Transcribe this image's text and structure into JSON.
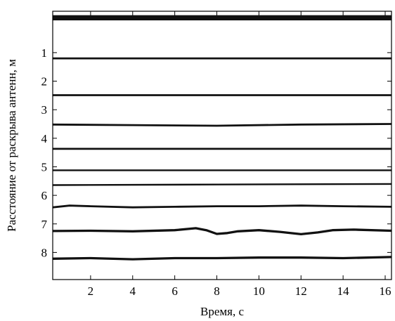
{
  "chart_data": {
    "type": "line",
    "xlabel": "Время, с",
    "ylabel": "Расстояние от раскрыва антенн, м",
    "xlim": [
      0.2,
      16.3
    ],
    "ylim": [
      0,
      8.95
    ],
    "y_inverted": true,
    "x_ticks": [
      2,
      4,
      6,
      8,
      10,
      12,
      14,
      16
    ],
    "y_ticks": [
      1,
      2,
      3,
      4,
      5,
      6,
      7,
      8
    ],
    "grid": false,
    "line_color": "#111111",
    "series": [
      {
        "x": [
          0.2,
          16.3
        ],
        "y": [
          -0.22,
          -0.22
        ],
        "width": 0.18
      },
      {
        "x": [
          0.2,
          16.3
        ],
        "y": [
          1.2,
          1.2
        ],
        "width": 0.07
      },
      {
        "x": [
          0.2,
          16.3
        ],
        "y": [
          2.49,
          2.49
        ],
        "width": 0.07
      },
      {
        "x": [
          0.2,
          4,
          8,
          12,
          16.3
        ],
        "y": [
          3.52,
          3.54,
          3.56,
          3.52,
          3.5
        ],
        "width": 0.07
      },
      {
        "x": [
          0.2,
          16.3
        ],
        "y": [
          4.37,
          4.37
        ],
        "width": 0.07
      },
      {
        "x": [
          0.2,
          16.3
        ],
        "y": [
          5.12,
          5.12
        ],
        "width": 0.06
      },
      {
        "x": [
          0.2,
          8,
          16.3
        ],
        "y": [
          5.64,
          5.62,
          5.6
        ],
        "width": 0.06
      },
      {
        "x": [
          0.2,
          1,
          2,
          4,
          6,
          8,
          10,
          12,
          14,
          16.3
        ],
        "y": [
          6.42,
          6.36,
          6.38,
          6.42,
          6.4,
          6.38,
          6.38,
          6.36,
          6.38,
          6.4
        ],
        "width": 0.07
      },
      {
        "x": [
          0.2,
          2,
          4,
          6,
          7,
          7.5,
          8,
          8.5,
          9,
          10,
          11,
          12,
          12.8,
          13.5,
          14.5,
          16.3
        ],
        "y": [
          7.25,
          7.24,
          7.26,
          7.22,
          7.15,
          7.22,
          7.35,
          7.32,
          7.26,
          7.22,
          7.28,
          7.36,
          7.3,
          7.22,
          7.2,
          7.24
        ],
        "width": 0.08
      },
      {
        "x": [
          0.2,
          2,
          4,
          6,
          8,
          10,
          12,
          14,
          16.3
        ],
        "y": [
          8.22,
          8.2,
          8.24,
          8.2,
          8.2,
          8.18,
          8.18,
          8.2,
          8.16
        ],
        "width": 0.08
      }
    ]
  }
}
